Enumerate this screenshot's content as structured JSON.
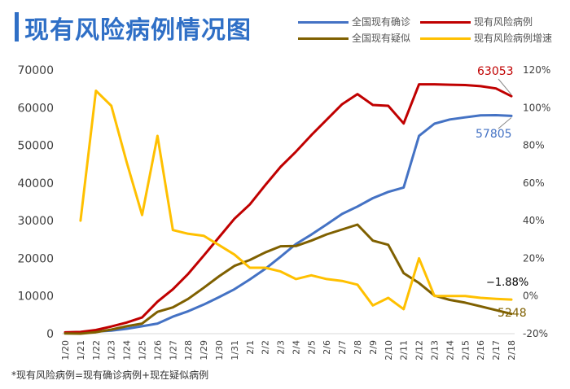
{
  "header": {
    "title": "现有风险病例情况图"
  },
  "footnote": "*现有风险病例=现有确诊病例+现在疑似病例",
  "chart_data": {
    "type": "line",
    "title": "现有风险病例情况图",
    "categories": [
      "1/20",
      "1/21",
      "1/22",
      "1/23",
      "1/24",
      "1/25",
      "1/26",
      "1/27",
      "1/28",
      "1/29",
      "1/30",
      "1/31",
      "2/1",
      "2/2",
      "2/3",
      "2/4",
      "2/5",
      "2/6",
      "2/7",
      "2/8",
      "2/9",
      "2/10",
      "2/11",
      "2/12",
      "2/13",
      "2/14",
      "2/15",
      "2/16",
      "2/17",
      "2/18"
    ],
    "left_axis": {
      "ylim": [
        0,
        70000
      ],
      "ticks": [
        "0",
        "10000",
        "20000",
        "30000",
        "40000",
        "50000",
        "60000",
        "70000"
      ]
    },
    "right_axis": {
      "ylim": [
        -20,
        120
      ],
      "ticks": [
        "-20%",
        "0%",
        "20%",
        "40%",
        "60%",
        "80%",
        "100%",
        "120%"
      ]
    },
    "legend_placement": "top-right",
    "grid": false,
    "series": [
      {
        "name": "全国现有确诊",
        "axis": "left",
        "color": "#4472c4",
        "values": [
          291,
          440,
          571,
          830,
          1287,
          1975,
          2684,
          4515,
          5970,
          7711,
          9692,
          11791,
          14380,
          17205,
          20438,
          23784,
          26302,
          28985,
          31774,
          33738,
          35982,
          37626,
          38800,
          52526,
          55748,
          56873,
          57416,
          57934,
          58016,
          57805
        ]
      },
      {
        "name": "现有风险病例",
        "axis": "left",
        "color": "#c00000",
        "values": [
          345,
          450,
          964,
          1900,
          2970,
          4300,
          8500,
          11800,
          15900,
          20700,
          25600,
          30500,
          34300,
          39400,
          44300,
          48300,
          52700,
          56800,
          60900,
          63600,
          60700,
          60500,
          55800,
          66200,
          66200,
          66100,
          66000,
          65700,
          65100,
          63053
        ]
      },
      {
        "name": "全国现有疑似",
        "axis": "left",
        "color": "#7f6000",
        "values": [
          54,
          10,
          393,
          1072,
          1965,
          2684,
          5794,
          6973,
          9239,
          12167,
          15238,
          17988,
          19544,
          21558,
          23214,
          23260,
          24702,
          26359,
          27657,
          28942,
          24702,
          23589,
          16067,
          13435,
          10109,
          8969,
          8228,
          7264,
          6242,
          5248
        ]
      },
      {
        "name": "现有风险病例增速",
        "axis": "right",
        "color": "#ffc000",
        "values": [
          null,
          40,
          109,
          101,
          71,
          43,
          85,
          35,
          33,
          32,
          27,
          22,
          15,
          15,
          13,
          9,
          11,
          9,
          8,
          6,
          -5,
          -1,
          -7,
          20,
          0,
          0,
          0,
          -1,
          -1.5,
          -1.88
        ]
      }
    ],
    "annotations": [
      {
        "series": "现有风险病例",
        "text": "63053",
        "color": "#c00000"
      },
      {
        "series": "全国现有确诊",
        "text": "57805",
        "color": "#4472c4"
      },
      {
        "series": "现有风险病例增速",
        "text": "−1.88%",
        "color": "#000000"
      },
      {
        "series": "全国现有疑似",
        "text": "5248",
        "color": "#7f6000"
      }
    ]
  }
}
